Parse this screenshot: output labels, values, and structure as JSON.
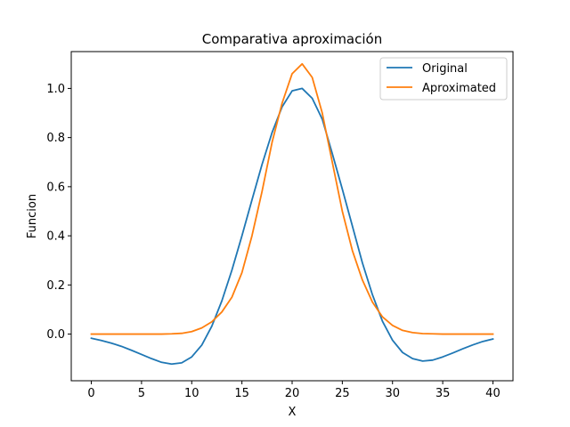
{
  "chart_data": {
    "type": "line",
    "title": "Comparativa aproximación",
    "xlabel": "X",
    "ylabel": "Funcion",
    "xlim": [
      -2,
      42
    ],
    "ylim": [
      -0.19,
      1.15
    ],
    "xticks": [
      0,
      5,
      10,
      15,
      20,
      25,
      30,
      35,
      40
    ],
    "yticks": [
      0.0,
      0.2,
      0.4,
      0.6,
      0.8,
      1.0
    ],
    "xtick_labels": [
      "0",
      "5",
      "10",
      "15",
      "20",
      "25",
      "30",
      "35",
      "40"
    ],
    "ytick_labels": [
      "0.0",
      "0.2",
      "0.4",
      "0.6",
      "0.8",
      "1.0"
    ],
    "grid": false,
    "legend_position": "top-right",
    "x": [
      0,
      1,
      2,
      3,
      4,
      5,
      6,
      7,
      8,
      9,
      10,
      11,
      12,
      13,
      14,
      15,
      16,
      17,
      18,
      19,
      20,
      21,
      22,
      23,
      24,
      25,
      26,
      27,
      28,
      29,
      30,
      31,
      32,
      33,
      34,
      35,
      36,
      37,
      38,
      39,
      40
    ],
    "series": [
      {
        "name": "Original",
        "color": "#1f77b4",
        "values": [
          -0.017,
          -0.026,
          -0.037,
          -0.05,
          -0.066,
          -0.083,
          -0.1,
          -0.115,
          -0.122,
          -0.117,
          -0.093,
          -0.045,
          0.032,
          0.135,
          0.26,
          0.4,
          0.546,
          0.69,
          0.82,
          0.925,
          0.99,
          1.0,
          0.96,
          0.875,
          0.735,
          0.59,
          0.44,
          0.29,
          0.16,
          0.052,
          -0.025,
          -0.075,
          -0.1,
          -0.11,
          -0.106,
          -0.093,
          -0.077,
          -0.06,
          -0.044,
          -0.03,
          -0.02
        ]
      },
      {
        "name": "Aproximated",
        "color": "#ff7f0e",
        "values": [
          0.0,
          0.0,
          0.0,
          0.0,
          0.0,
          0.0,
          0.0,
          0.0,
          0.001,
          0.003,
          0.01,
          0.025,
          0.05,
          0.09,
          0.15,
          0.25,
          0.4,
          0.58,
          0.78,
          0.94,
          1.06,
          1.1,
          1.045,
          0.9,
          0.7,
          0.5,
          0.34,
          0.22,
          0.13,
          0.07,
          0.035,
          0.015,
          0.006,
          0.002,
          0.001,
          0.0,
          0.0,
          0.0,
          0.0,
          0.0,
          0.0
        ]
      }
    ]
  }
}
